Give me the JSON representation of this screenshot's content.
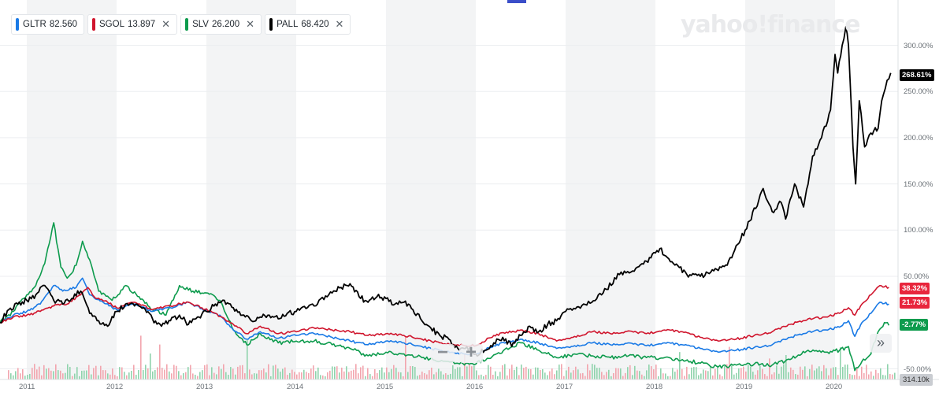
{
  "legend": [
    {
      "symbol": "GLTR",
      "value": "82.560",
      "color": "#1a7ae6",
      "closable": false
    },
    {
      "symbol": "SGOL",
      "value": "13.897",
      "color": "#d0152d",
      "closable": true
    },
    {
      "symbol": "SLV",
      "value": "26.200",
      "color": "#0d9b4d",
      "closable": true
    },
    {
      "symbol": "PALL",
      "value": "68.420",
      "color": "#000000",
      "closable": true
    }
  ],
  "close_glyph": "✕",
  "logo": "yahoo!finance",
  "y_ticks": [
    "300.00%",
    "250.00%",
    "200.00%",
    "150.00%",
    "100.00%",
    "50.00%",
    "-50.00%"
  ],
  "x_ticks": [
    "2011",
    "2012",
    "2013",
    "2014",
    "2015",
    "2016",
    "2017",
    "2018",
    "2019",
    "2020"
  ],
  "badges": [
    {
      "text": "268.61%",
      "color": "#000000",
      "series": "PALL"
    },
    {
      "text": "38.32%",
      "color": "#e8253c",
      "series": "SGOL"
    },
    {
      "text": "21.73%",
      "color": "#e8253c",
      "series": "GLTR"
    },
    {
      "text": "-2.77%",
      "color": "#0d9b4d",
      "series": "SLV"
    }
  ],
  "volume_badge": "314.10k",
  "zoom_out": "−",
  "zoom_in": "+",
  "nav_glyph": "»",
  "chart_data": {
    "type": "line",
    "y_unit": "%",
    "ylim": [
      -50,
      320
    ],
    "x_start": "2010-09",
    "x_end": "2020-06",
    "series": [
      {
        "name": "GLTR",
        "color": "#1a7ae6",
        "values": [
          [
            2010.7,
            0
          ],
          [
            2010.85,
            8
          ],
          [
            2011.0,
            12
          ],
          [
            2011.15,
            20
          ],
          [
            2011.3,
            40
          ],
          [
            2011.4,
            34
          ],
          [
            2011.55,
            38
          ],
          [
            2011.62,
            48
          ],
          [
            2011.7,
            30
          ],
          [
            2011.85,
            22
          ],
          [
            2012.0,
            14
          ],
          [
            2012.2,
            20
          ],
          [
            2012.4,
            12
          ],
          [
            2012.6,
            16
          ],
          [
            2012.8,
            22
          ],
          [
            2012.95,
            15
          ],
          [
            2013.15,
            8
          ],
          [
            2013.3,
            -8
          ],
          [
            2013.45,
            -18
          ],
          [
            2013.6,
            -10
          ],
          [
            2013.8,
            -17
          ],
          [
            2014.0,
            -14
          ],
          [
            2014.2,
            -12
          ],
          [
            2014.4,
            -16
          ],
          [
            2014.6,
            -20
          ],
          [
            2014.8,
            -24
          ],
          [
            2015.0,
            -20
          ],
          [
            2015.2,
            -22
          ],
          [
            2015.4,
            -26
          ],
          [
            2015.6,
            -30
          ],
          [
            2015.8,
            -33
          ],
          [
            2016.0,
            -34
          ],
          [
            2016.2,
            -25
          ],
          [
            2016.5,
            -18
          ],
          [
            2016.7,
            -22
          ],
          [
            2016.9,
            -28
          ],
          [
            2017.1,
            -25
          ],
          [
            2017.3,
            -22
          ],
          [
            2017.5,
            -24
          ],
          [
            2017.7,
            -22
          ],
          [
            2017.9,
            -25
          ],
          [
            2018.1,
            -22
          ],
          [
            2018.3,
            -24
          ],
          [
            2018.5,
            -28
          ],
          [
            2018.7,
            -32
          ],
          [
            2018.9,
            -30
          ],
          [
            2019.1,
            -27
          ],
          [
            2019.3,
            -24
          ],
          [
            2019.5,
            -16
          ],
          [
            2019.7,
            -10
          ],
          [
            2019.9,
            -8
          ],
          [
            2020.05,
            -5
          ],
          [
            2020.15,
            2
          ],
          [
            2020.22,
            -15
          ],
          [
            2020.3,
            0
          ],
          [
            2020.4,
            10
          ],
          [
            2020.5,
            22
          ],
          [
            2020.6,
            20
          ]
        ]
      },
      {
        "name": "SGOL",
        "color": "#d0152d",
        "values": [
          [
            2010.7,
            0
          ],
          [
            2010.85,
            6
          ],
          [
            2011.0,
            8
          ],
          [
            2011.15,
            12
          ],
          [
            2011.3,
            18
          ],
          [
            2011.45,
            20
          ],
          [
            2011.6,
            30
          ],
          [
            2011.68,
            38
          ],
          [
            2011.75,
            28
          ],
          [
            2011.9,
            22
          ],
          [
            2012.0,
            16
          ],
          [
            2012.2,
            22
          ],
          [
            2012.4,
            14
          ],
          [
            2012.6,
            18
          ],
          [
            2012.8,
            22
          ],
          [
            2012.95,
            16
          ],
          [
            2013.1,
            10
          ],
          [
            2013.3,
            -2
          ],
          [
            2013.45,
            -12
          ],
          [
            2013.6,
            -4
          ],
          [
            2013.8,
            -12
          ],
          [
            2014.0,
            -10
          ],
          [
            2014.2,
            -6
          ],
          [
            2014.4,
            -8
          ],
          [
            2014.6,
            -10
          ],
          [
            2014.8,
            -14
          ],
          [
            2015.0,
            -12
          ],
          [
            2015.2,
            -14
          ],
          [
            2015.4,
            -18
          ],
          [
            2015.6,
            -22
          ],
          [
            2015.8,
            -24
          ],
          [
            2016.0,
            -25
          ],
          [
            2016.2,
            -14
          ],
          [
            2016.5,
            -8
          ],
          [
            2016.7,
            -12
          ],
          [
            2016.9,
            -20
          ],
          [
            2017.1,
            -15
          ],
          [
            2017.3,
            -10
          ],
          [
            2017.5,
            -12
          ],
          [
            2017.7,
            -9
          ],
          [
            2017.9,
            -12
          ],
          [
            2018.1,
            -8
          ],
          [
            2018.3,
            -10
          ],
          [
            2018.5,
            -16
          ],
          [
            2018.7,
            -20
          ],
          [
            2018.9,
            -18
          ],
          [
            2019.1,
            -14
          ],
          [
            2019.3,
            -10
          ],
          [
            2019.5,
            -2
          ],
          [
            2019.7,
            4
          ],
          [
            2019.9,
            6
          ],
          [
            2020.05,
            10
          ],
          [
            2020.15,
            16
          ],
          [
            2020.22,
            8
          ],
          [
            2020.3,
            20
          ],
          [
            2020.4,
            30
          ],
          [
            2020.5,
            40
          ],
          [
            2020.6,
            38
          ]
        ]
      },
      {
        "name": "SLV",
        "color": "#0d9b4d",
        "values": [
          [
            2010.7,
            0
          ],
          [
            2010.85,
            12
          ],
          [
            2011.0,
            30
          ],
          [
            2011.1,
            40
          ],
          [
            2011.2,
            64
          ],
          [
            2011.3,
            108
          ],
          [
            2011.38,
            60
          ],
          [
            2011.45,
            48
          ],
          [
            2011.55,
            62
          ],
          [
            2011.62,
            88
          ],
          [
            2011.7,
            68
          ],
          [
            2011.8,
            34
          ],
          [
            2011.95,
            24
          ],
          [
            2012.1,
            40
          ],
          [
            2012.25,
            28
          ],
          [
            2012.4,
            14
          ],
          [
            2012.55,
            8
          ],
          [
            2012.7,
            40
          ],
          [
            2012.85,
            34
          ],
          [
            2013.0,
            32
          ],
          [
            2013.15,
            24
          ],
          [
            2013.3,
            -8
          ],
          [
            2013.45,
            -24
          ],
          [
            2013.6,
            -12
          ],
          [
            2013.8,
            -22
          ],
          [
            2014.0,
            -20
          ],
          [
            2014.2,
            -20
          ],
          [
            2014.4,
            -24
          ],
          [
            2014.6,
            -28
          ],
          [
            2014.8,
            -36
          ],
          [
            2015.0,
            -32
          ],
          [
            2015.2,
            -34
          ],
          [
            2015.4,
            -38
          ],
          [
            2015.6,
            -42
          ],
          [
            2015.8,
            -44
          ],
          [
            2016.0,
            -45
          ],
          [
            2016.2,
            -35
          ],
          [
            2016.5,
            -22
          ],
          [
            2016.7,
            -30
          ],
          [
            2016.9,
            -38
          ],
          [
            2017.1,
            -34
          ],
          [
            2017.3,
            -36
          ],
          [
            2017.5,
            -38
          ],
          [
            2017.7,
            -36
          ],
          [
            2017.9,
            -38
          ],
          [
            2018.1,
            -38
          ],
          [
            2018.3,
            -40
          ],
          [
            2018.5,
            -44
          ],
          [
            2018.7,
            -48
          ],
          [
            2018.9,
            -46
          ],
          [
            2019.1,
            -45
          ],
          [
            2019.3,
            -46
          ],
          [
            2019.5,
            -40
          ],
          [
            2019.7,
            -30
          ],
          [
            2019.9,
            -32
          ],
          [
            2020.05,
            -30
          ],
          [
            2020.15,
            -26
          ],
          [
            2020.22,
            -52
          ],
          [
            2020.3,
            -42
          ],
          [
            2020.4,
            -34
          ],
          [
            2020.48,
            -10
          ],
          [
            2020.55,
            0
          ],
          [
            2020.6,
            -3
          ]
        ]
      },
      {
        "name": "PALL",
        "color": "#000000",
        "values": [
          [
            2010.7,
            0
          ],
          [
            2010.8,
            14
          ],
          [
            2010.9,
            20
          ],
          [
            2011.0,
            24
          ],
          [
            2011.1,
            30
          ],
          [
            2011.2,
            40
          ],
          [
            2011.3,
            24
          ],
          [
            2011.4,
            20
          ],
          [
            2011.5,
            26
          ],
          [
            2011.6,
            34
          ],
          [
            2011.7,
            10
          ],
          [
            2011.8,
            2
          ],
          [
            2011.9,
            -4
          ],
          [
            2012.0,
            12
          ],
          [
            2012.1,
            20
          ],
          [
            2012.2,
            18
          ],
          [
            2012.3,
            16
          ],
          [
            2012.4,
            4
          ],
          [
            2012.5,
            -4
          ],
          [
            2012.6,
            2
          ],
          [
            2012.7,
            8
          ],
          [
            2012.8,
            -2
          ],
          [
            2012.9,
            6
          ],
          [
            2013.0,
            12
          ],
          [
            2013.1,
            20
          ],
          [
            2013.2,
            24
          ],
          [
            2013.3,
            16
          ],
          [
            2013.4,
            8
          ],
          [
            2013.5,
            2
          ],
          [
            2013.6,
            6
          ],
          [
            2013.7,
            8
          ],
          [
            2013.8,
            4
          ],
          [
            2013.9,
            10
          ],
          [
            2014.0,
            12
          ],
          [
            2014.2,
            18
          ],
          [
            2014.4,
            32
          ],
          [
            2014.5,
            38
          ],
          [
            2014.6,
            42
          ],
          [
            2014.7,
            28
          ],
          [
            2014.8,
            22
          ],
          [
            2014.9,
            28
          ],
          [
            2015.0,
            26
          ],
          [
            2015.1,
            20
          ],
          [
            2015.2,
            22
          ],
          [
            2015.3,
            14
          ],
          [
            2015.4,
            2
          ],
          [
            2015.5,
            -6
          ],
          [
            2015.6,
            -14
          ],
          [
            2015.7,
            -18
          ],
          [
            2015.8,
            -28
          ],
          [
            2015.9,
            -26
          ],
          [
            2016.0,
            -34
          ],
          [
            2016.1,
            -30
          ],
          [
            2016.2,
            -22
          ],
          [
            2016.3,
            -16
          ],
          [
            2016.4,
            -26
          ],
          [
            2016.5,
            -14
          ],
          [
            2016.6,
            -4
          ],
          [
            2016.7,
            -10
          ],
          [
            2016.8,
            -2
          ],
          [
            2016.9,
            2
          ],
          [
            2017.0,
            12
          ],
          [
            2017.2,
            20
          ],
          [
            2017.4,
            30
          ],
          [
            2017.6,
            52
          ],
          [
            2017.8,
            60
          ],
          [
            2017.95,
            70
          ],
          [
            2018.05,
            80
          ],
          [
            2018.2,
            64
          ],
          [
            2018.35,
            52
          ],
          [
            2018.5,
            50
          ],
          [
            2018.65,
            56
          ],
          [
            2018.8,
            62
          ],
          [
            2018.95,
            90
          ],
          [
            2019.05,
            110
          ],
          [
            2019.15,
            132
          ],
          [
            2019.2,
            145
          ],
          [
            2019.3,
            120
          ],
          [
            2019.4,
            130
          ],
          [
            2019.45,
            112
          ],
          [
            2019.55,
            150
          ],
          [
            2019.65,
            125
          ],
          [
            2019.75,
            180
          ],
          [
            2019.85,
            200
          ],
          [
            2019.95,
            230
          ],
          [
            2020.0,
            290
          ],
          [
            2020.03,
            270
          ],
          [
            2020.08,
            300
          ],
          [
            2020.12,
            320
          ],
          [
            2020.15,
            300
          ],
          [
            2020.2,
            190
          ],
          [
            2020.23,
            150
          ],
          [
            2020.27,
            240
          ],
          [
            2020.33,
            190
          ],
          [
            2020.4,
            205
          ],
          [
            2020.48,
            210
          ],
          [
            2020.52,
            240
          ],
          [
            2020.58,
            262
          ],
          [
            2020.62,
            270
          ]
        ]
      }
    ]
  }
}
